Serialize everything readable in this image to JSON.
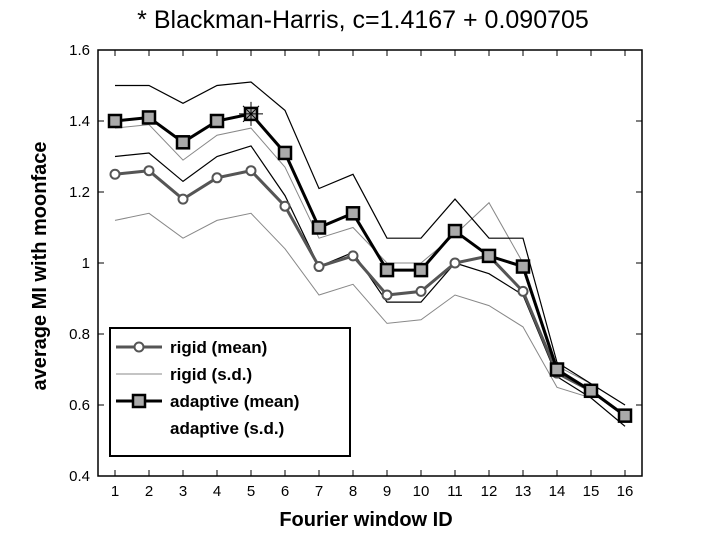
{
  "chart_data": {
    "type": "line",
    "title": "* Blackman-Harris, c=1.4167 + 0.090705",
    "xlabel": "Fourier window ID",
    "ylabel": "average MI with moonface",
    "x": [
      1,
      2,
      3,
      4,
      5,
      6,
      7,
      8,
      9,
      10,
      11,
      12,
      13,
      14,
      15,
      16
    ],
    "xlim": [
      0.5,
      16.5
    ],
    "ylim": [
      0.4,
      1.6
    ],
    "yticks": [
      0.4,
      0.6,
      0.8,
      1,
      1.2,
      1.4,
      1.6
    ],
    "ytick_labels": [
      "0.4",
      "0.6",
      "0.8",
      "1",
      "1.2",
      "1.4",
      "1.6"
    ],
    "grid": false,
    "legend_position": "lower-left",
    "highlight_point": {
      "x": 5,
      "y": 1.42
    },
    "series": [
      {
        "name": "rigid (mean)",
        "role": "mean",
        "marker": "circle",
        "color": "#555555",
        "values": [
          1.25,
          1.26,
          1.18,
          1.24,
          1.26,
          1.16,
          0.99,
          1.02,
          0.91,
          0.92,
          1.0,
          1.02,
          0.92,
          0.69,
          0.64,
          0.57
        ]
      },
      {
        "name": "rigid (s.d.)",
        "role": "sd",
        "color": "#888888",
        "upper": [
          1.38,
          1.39,
          1.29,
          1.36,
          1.38,
          1.27,
          1.07,
          1.1,
          1.0,
          1.0,
          1.08,
          1.17,
          1.0,
          0.71,
          0.66,
          0.6
        ],
        "lower": [
          1.12,
          1.14,
          1.07,
          1.12,
          1.14,
          1.04,
          0.91,
          0.94,
          0.83,
          0.84,
          0.91,
          0.88,
          0.82,
          0.65,
          0.62,
          0.54
        ]
      },
      {
        "name": "adaptive (mean)",
        "role": "mean",
        "marker": "square",
        "color": "#000000",
        "values": [
          1.4,
          1.41,
          1.34,
          1.4,
          1.42,
          1.31,
          1.1,
          1.14,
          0.98,
          0.98,
          1.09,
          1.02,
          0.99,
          0.7,
          0.64,
          0.57
        ]
      },
      {
        "name": "adaptive (s.d.)",
        "role": "sd",
        "color": "#000000",
        "upper": [
          1.5,
          1.5,
          1.45,
          1.5,
          1.51,
          1.43,
          1.21,
          1.25,
          1.07,
          1.07,
          1.18,
          1.07,
          1.07,
          0.72,
          0.66,
          0.6
        ],
        "lower": [
          1.3,
          1.31,
          1.23,
          1.3,
          1.33,
          1.19,
          0.99,
          1.03,
          0.89,
          0.89,
          1.0,
          0.97,
          0.91,
          0.68,
          0.62,
          0.54
        ]
      }
    ]
  }
}
